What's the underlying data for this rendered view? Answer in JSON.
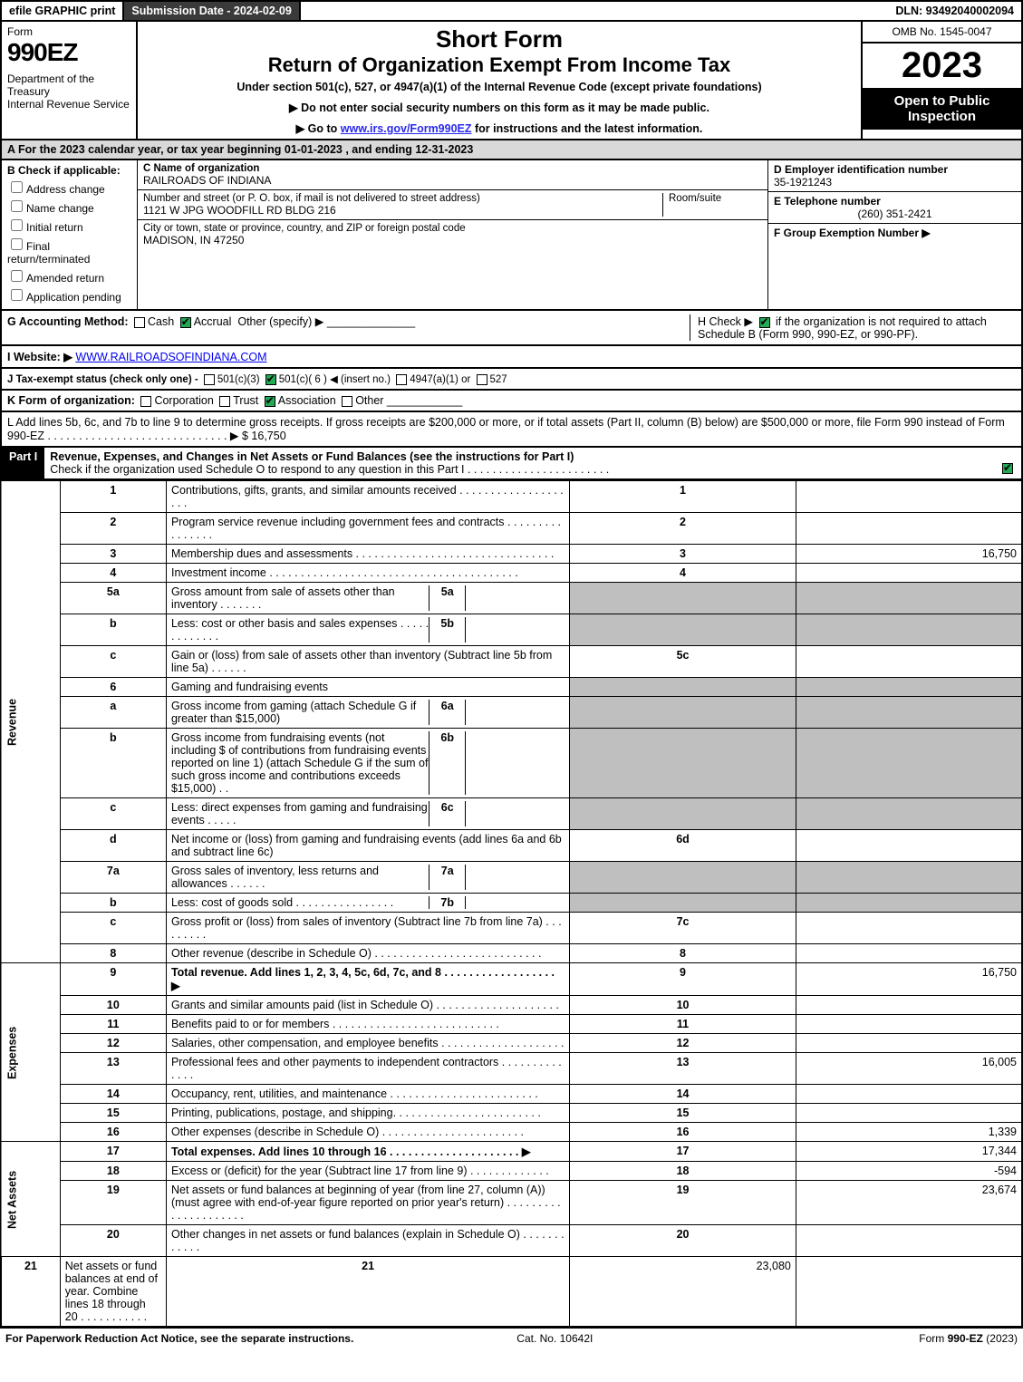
{
  "topbar": {
    "efile": "efile GRAPHIC print",
    "submission_label": "Submission Date - 2024-02-09",
    "dln": "DLN: 93492040002094"
  },
  "header": {
    "form_word": "Form",
    "form_number": "990EZ",
    "dept": "Department of the Treasury\nInternal Revenue Service",
    "title1": "Short Form",
    "title2": "Return of Organization Exempt From Income Tax",
    "subtitle": "Under section 501(c), 527, or 4947(a)(1) of the Internal Revenue Code (except private foundations)",
    "note1": "▶ Do not enter social security numbers on this form as it may be made public.",
    "note2_pre": "▶ Go to ",
    "note2_link": "www.irs.gov/Form990EZ",
    "note2_post": " for instructions and the latest information.",
    "omb": "OMB No. 1545-0047",
    "year": "2023",
    "open": "Open to Public Inspection"
  },
  "lineA": "A  For the 2023 calendar year, or tax year beginning 01-01-2023 , and ending 12-31-2023",
  "B": {
    "label": "B  Check if applicable:",
    "opts": [
      "Address change",
      "Name change",
      "Initial return",
      "Final return/terminated",
      "Amended return",
      "Application pending"
    ]
  },
  "C": {
    "name_label": "C Name of organization",
    "name": "RAILROADS OF INDIANA",
    "street_label": "Number and street (or P. O. box, if mail is not delivered to street address)",
    "room_label": "Room/suite",
    "street": "1121 W JPG WOODFILL RD BLDG 216",
    "city_label": "City or town, state or province, country, and ZIP or foreign postal code",
    "city": "MADISON, IN  47250"
  },
  "D": {
    "label": "D Employer identification number",
    "value": "35-1921243"
  },
  "E": {
    "label": "E Telephone number",
    "value": "(260) 351-2421"
  },
  "F": {
    "label": "F Group Exemption Number  ▶",
    "value": ""
  },
  "G": {
    "label": "G Accounting Method:",
    "cash": "Cash",
    "accrual": "Accrual",
    "other": "Other (specify) ▶"
  },
  "H": {
    "text": "H   Check ▶ ",
    "tail": " if the organization is not required to attach Schedule B (Form 990, 990-EZ, or 990-PF)."
  },
  "I": {
    "label": "I Website: ▶",
    "value": "WWW.RAILROADSOFINDIANA.COM"
  },
  "J": {
    "label": "J Tax-exempt status (check only one) - ",
    "o1": "501(c)(3)",
    "o2": "501(c)( 6 ) ◀ (insert no.)",
    "o3": "4947(a)(1) or",
    "o4": "527"
  },
  "K": {
    "label": "K Form of organization:",
    "opts": [
      "Corporation",
      "Trust",
      "Association",
      "Other"
    ]
  },
  "L": {
    "text": "L Add lines 5b, 6c, and 7b to line 9 to determine gross receipts. If gross receipts are $200,000 or more, or if total assets (Part II, column (B) below) are $500,000 or more, file Form 990 instead of Form 990-EZ  .  .  .  .  .  .  .  .  .  .  .  .  .  .  .  .  .  .  .  .  .  .  .  .  .  .  .  .  .  ▶ $",
    "value": "16,750"
  },
  "part1": {
    "tab": "Part I",
    "title": "Revenue, Expenses, and Changes in Net Assets or Fund Balances (see the instructions for Part I)",
    "check_line": "Check if the organization used Schedule O to respond to any question in this Part I  .  .  .  .  .  .  .  .  .  .  .  .  .  .  .  .  .  .  .  .  .  .  .",
    "sections": {
      "revenue": "Revenue",
      "expenses": "Expenses",
      "netassets": "Net Assets"
    },
    "lines": [
      {
        "n": "1",
        "d": "Contributions, gifts, grants, and similar amounts received  .  .  .  .  .  .  .  .  .  .  .  .  .  .  .  .  .  .  .  .",
        "r": "1",
        "v": ""
      },
      {
        "n": "2",
        "d": "Program service revenue including government fees and contracts  .  .  .  .  .  .  .  .  .  .  .  .  .  .  .  .",
        "r": "2",
        "v": ""
      },
      {
        "n": "3",
        "d": "Membership dues and assessments  .  .  .  .  .  .  .  .  .  .  .  .  .  .  .  .  .  .  .  .  .  .  .  .  .  .  .  .  .  .  .  .",
        "r": "3",
        "v": "16,750"
      },
      {
        "n": "4",
        "d": "Investment income  .  .  .  .  .  .  .  .  .  .  .  .  .  .  .  .  .  .  .  .  .  .  .  .  .  .  .  .  .  .  .  .  .  .  .  .  .  .  .  .",
        "r": "4",
        "v": ""
      },
      {
        "n": "5a",
        "d": "Gross amount from sale of assets other than inventory  .  .  .  .  .  .  .",
        "sub": "5a",
        "subv": "",
        "grey": true
      },
      {
        "n": "b",
        "d": "Less: cost or other basis and sales expenses  .  .  .  .  .  .  .  .  .  .  .  .  .",
        "sub": "5b",
        "subv": "",
        "grey": true
      },
      {
        "n": "c",
        "d": "Gain or (loss) from sale of assets other than inventory (Subtract line 5b from line 5a)  .  .  .  .  .  .",
        "r": "5c",
        "v": ""
      },
      {
        "n": "6",
        "d": "Gaming and fundraising events",
        "grey": true,
        "nocols": true
      },
      {
        "n": "a",
        "d": "Gross income from gaming (attach Schedule G if greater than $15,000)",
        "sub": "6a",
        "subv": "",
        "grey": true
      },
      {
        "n": "b",
        "d": "Gross income from fundraising events (not including $                    of contributions from fundraising events reported on line 1) (attach Schedule G if the sum of such gross income and contributions exceeds $15,000)   .   .",
        "sub": "6b",
        "subv": "",
        "grey": true
      },
      {
        "n": "c",
        "d": "Less: direct expenses from gaming and fundraising events  .  .  .  .  .",
        "sub": "6c",
        "subv": "",
        "grey": true
      },
      {
        "n": "d",
        "d": "Net income or (loss) from gaming and fundraising events (add lines 6a and 6b and subtract line 6c)",
        "r": "6d",
        "v": ""
      },
      {
        "n": "7a",
        "d": "Gross sales of inventory, less returns and allowances  .  .  .  .  .  .",
        "sub": "7a",
        "subv": "",
        "grey": true
      },
      {
        "n": "b",
        "d": "Less: cost of goods sold        .  .  .  .  .  .  .  .  .  .  .  .  .  .  .  .",
        "sub": "7b",
        "subv": "",
        "grey": true
      },
      {
        "n": "c",
        "d": "Gross profit or (loss) from sales of inventory (Subtract line 7b from line 7a)  .  .  .  .  .  .  .  .  .",
        "r": "7c",
        "v": ""
      },
      {
        "n": "8",
        "d": "Other revenue (describe in Schedule O) .  .  .  .  .  .  .  .  .  .  .  .  .  .  .  .  .  .  .  .  .  .  .  .  .  .  .",
        "r": "8",
        "v": ""
      },
      {
        "n": "9",
        "d": "Total revenue. Add lines 1, 2, 3, 4, 5c, 6d, 7c, and 8   .  .  .  .  .  .  .  .  .  .  .  .  .  .  .  .  .  .  ▶",
        "r": "9",
        "v": "16,750",
        "bold": true
      },
      {
        "n": "10",
        "d": "Grants and similar amounts paid (list in Schedule O)  .  .  .  .  .  .  .  .  .  .  .  .  .  .  .  .  .  .  .  .",
        "r": "10",
        "v": ""
      },
      {
        "n": "11",
        "d": "Benefits paid to or for members       .  .  .  .  .  .  .  .  .  .  .  .  .  .  .  .  .  .  .  .  .  .  .  .  .  .  .",
        "r": "11",
        "v": ""
      },
      {
        "n": "12",
        "d": "Salaries, other compensation, and employee benefits .  .  .  .  .  .  .  .  .  .  .  .  .  .  .  .  .  .  .  .",
        "r": "12",
        "v": ""
      },
      {
        "n": "13",
        "d": "Professional fees and other payments to independent contractors  .  .  .  .  .  .  .  .  .  .  .  .  .  .",
        "r": "13",
        "v": "16,005"
      },
      {
        "n": "14",
        "d": "Occupancy, rent, utilities, and maintenance .  .  .  .  .  .  .  .  .  .  .  .  .  .  .  .  .  .  .  .  .  .  .  .",
        "r": "14",
        "v": ""
      },
      {
        "n": "15",
        "d": "Printing, publications, postage, and shipping.  .  .  .  .  .  .  .  .  .  .  .  .  .  .  .  .  .  .  .  .  .  .  .",
        "r": "15",
        "v": ""
      },
      {
        "n": "16",
        "d": "Other expenses (describe in Schedule O)     .  .  .  .  .  .  .  .  .  .  .  .  .  .  .  .  .  .  .  .  .  .  .",
        "r": "16",
        "v": "1,339"
      },
      {
        "n": "17",
        "d": "Total expenses. Add lines 10 through 16      .  .  .  .  .  .  .  .  .  .  .  .  .  .  .  .  .  .  .  .  .  ▶",
        "r": "17",
        "v": "17,344",
        "bold": true
      },
      {
        "n": "18",
        "d": "Excess or (deficit) for the year (Subtract line 17 from line 9)        .  .  .  .  .  .  .  .  .  .  .  .  .",
        "r": "18",
        "v": "-594"
      },
      {
        "n": "19",
        "d": "Net assets or fund balances at beginning of year (from line 27, column (A)) (must agree with end-of-year figure reported on prior year's return) .  .  .  .  .  .  .  .  .  .  .  .  .  .  .  .  .  .  .  .  .",
        "r": "19",
        "v": "23,674"
      },
      {
        "n": "20",
        "d": "Other changes in net assets or fund balances (explain in Schedule O) .  .  .  .  .  .  .  .  .  .  .  .",
        "r": "20",
        "v": ""
      },
      {
        "n": "21",
        "d": "Net assets or fund balances at end of year. Combine lines 18 through 20 .  .  .  .  .  .  .  .  .  .  .",
        "r": "21",
        "v": "23,080"
      }
    ]
  },
  "footer": {
    "left": "For Paperwork Reduction Act Notice, see the separate instructions.",
    "mid": "Cat. No. 10642I",
    "right": "Form 990-EZ (2023)"
  },
  "colors": {
    "topbar_btn_bg": "#3a3a3a",
    "grey_cell": "#bfbfbf",
    "section_bg": "#d9d9d9",
    "link": "#2a2aee"
  }
}
